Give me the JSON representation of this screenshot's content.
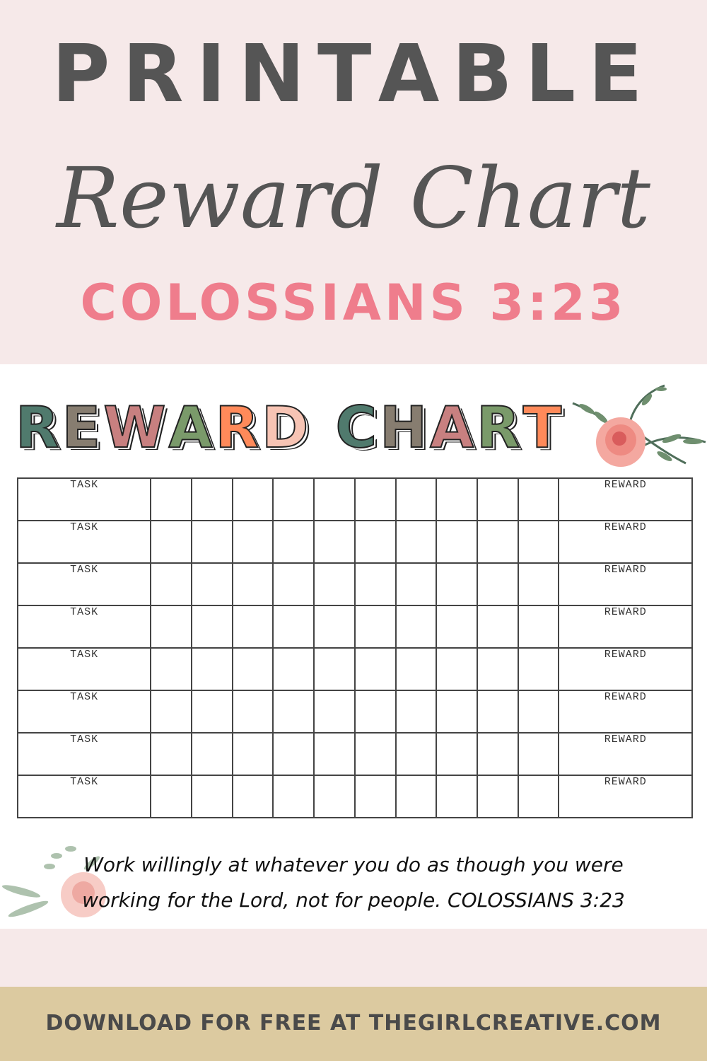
{
  "header": {
    "line1": "PRINTABLE",
    "line2": "Reward Chart",
    "reference": "COLOSSIANS 3:23"
  },
  "chart": {
    "title_letters": [
      {
        "char": "R",
        "color": "#507a6d"
      },
      {
        "char": "E",
        "color": "#877d70"
      },
      {
        "char": "W",
        "color": "#c88080"
      },
      {
        "char": "A",
        "color": "#7a9a6a"
      },
      {
        "char": "R",
        "color": "#ff8a5a"
      },
      {
        "char": "D",
        "color": "#f7c4b4"
      },
      {
        "char": " ",
        "color": "#ffffff"
      },
      {
        "char": "C",
        "color": "#507a6d"
      },
      {
        "char": "H",
        "color": "#877d70"
      },
      {
        "char": "A",
        "color": "#c88080"
      },
      {
        "char": "R",
        "color": "#7a9a6a"
      },
      {
        "char": "T",
        "color": "#ff8a5a"
      }
    ],
    "task_label": "TASK",
    "reward_label": "REWARD",
    "rows": 8,
    "boxes_per_row": 10,
    "verse": "Work willingly at whatever you do as though you were working for the Lord, not for people. COLOSSIANS 3:23"
  },
  "footer": {
    "text": "DOWNLOAD FOR FREE AT THEGIRLCREATIVE.COM"
  }
}
